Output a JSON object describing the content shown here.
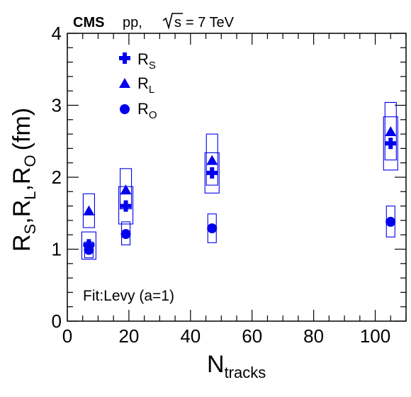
{
  "header": {
    "experiment": "CMS",
    "system": "pp,",
    "energy_symbol": "s",
    "energy_value": "= 7 TeV"
  },
  "annotation": "Fit:Levy (a=1)",
  "colors": {
    "series": "#0000ee",
    "axis": "#000000"
  },
  "chart_data": {
    "type": "scatter",
    "title": "",
    "xlabel": {
      "main": "N",
      "sub": "tracks"
    },
    "ylabel": {
      "parts": [
        {
          "main": "R",
          "sub": "S"
        },
        {
          "main": "R",
          "sub": "L"
        },
        {
          "main": "R",
          "sub": "O"
        }
      ],
      "suffix": "(fm)"
    },
    "xlim": [
      0,
      110
    ],
    "ylim": [
      0,
      4
    ],
    "x_ticks": [
      0,
      20,
      40,
      60,
      80,
      100
    ],
    "y_ticks": [
      0,
      1,
      2,
      3,
      4
    ],
    "x_tick_labels": [
      "0",
      "20",
      "40",
      "60",
      "80",
      "100"
    ],
    "y_tick_labels": [
      "0",
      "1",
      "2",
      "3",
      "4"
    ],
    "grid": false,
    "legend_position": "top-left",
    "series": [
      {
        "name": {
          "main": "R",
          "sub": "S"
        },
        "marker": "cross",
        "points": [
          {
            "x": 7,
            "y": 1.06,
            "sys": [
              0.86,
              1.24
            ]
          },
          {
            "x": 19,
            "y": 1.6,
            "sys": [
              1.35,
              1.87
            ]
          },
          {
            "x": 47,
            "y": 2.06,
            "sys": [
              1.78,
              2.34
            ]
          },
          {
            "x": 105,
            "y": 2.47,
            "sys": [
              2.1,
              2.84
            ]
          }
        ]
      },
      {
        "name": {
          "main": "R",
          "sub": "L"
        },
        "marker": "triangle",
        "points": [
          {
            "x": 7,
            "y": 1.53,
            "sys": [
              1.3,
              1.77
            ]
          },
          {
            "x": 19,
            "y": 1.82,
            "sys": [
              1.56,
              2.12
            ]
          },
          {
            "x": 47,
            "y": 2.23,
            "sys": [
              1.89,
              2.6
            ]
          },
          {
            "x": 105,
            "y": 2.63,
            "sys": [
              2.24,
              3.04
            ]
          }
        ]
      },
      {
        "name": {
          "main": "R",
          "sub": "O"
        },
        "marker": "circle",
        "points": [
          {
            "x": 7,
            "y": 0.99,
            "sys": [
              0.88,
              1.1
            ]
          },
          {
            "x": 19,
            "y": 1.21,
            "sys": [
              1.06,
              1.38
            ]
          },
          {
            "x": 47,
            "y": 1.29,
            "sys": [
              1.09,
              1.49
            ]
          },
          {
            "x": 105,
            "y": 1.38,
            "sys": [
              1.17,
              1.6
            ]
          }
        ]
      }
    ]
  }
}
